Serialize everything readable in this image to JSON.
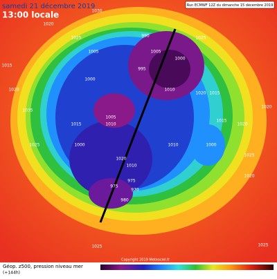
{
  "header": {
    "date": "samedi 21 décembre 2019",
    "time": "13:00 locale",
    "run": "Run ECMWF 12Z du dimanche 15 décembre 2019"
  },
  "footer": {
    "field": "Géop. z500, pression niveau mer",
    "lead": "(+144h)",
    "copyright": "Copyright 2019 Meteociel.fr"
  },
  "isobar_labels": [
    "1030",
    "1020",
    "1025",
    "1025",
    "1015",
    "1020",
    "1005",
    "1000",
    "1005",
    "995",
    "990",
    "1000",
    "1010",
    "1020",
    "1015",
    "1005",
    "1010",
    "1010",
    "1000",
    "1015",
    "1020",
    "1020",
    "1025",
    "1020",
    "975",
    "980",
    "970",
    "975",
    "1025",
    "1025",
    "1025",
    "1035",
    "1015",
    "1000",
    "1020",
    "1010"
  ]
}
